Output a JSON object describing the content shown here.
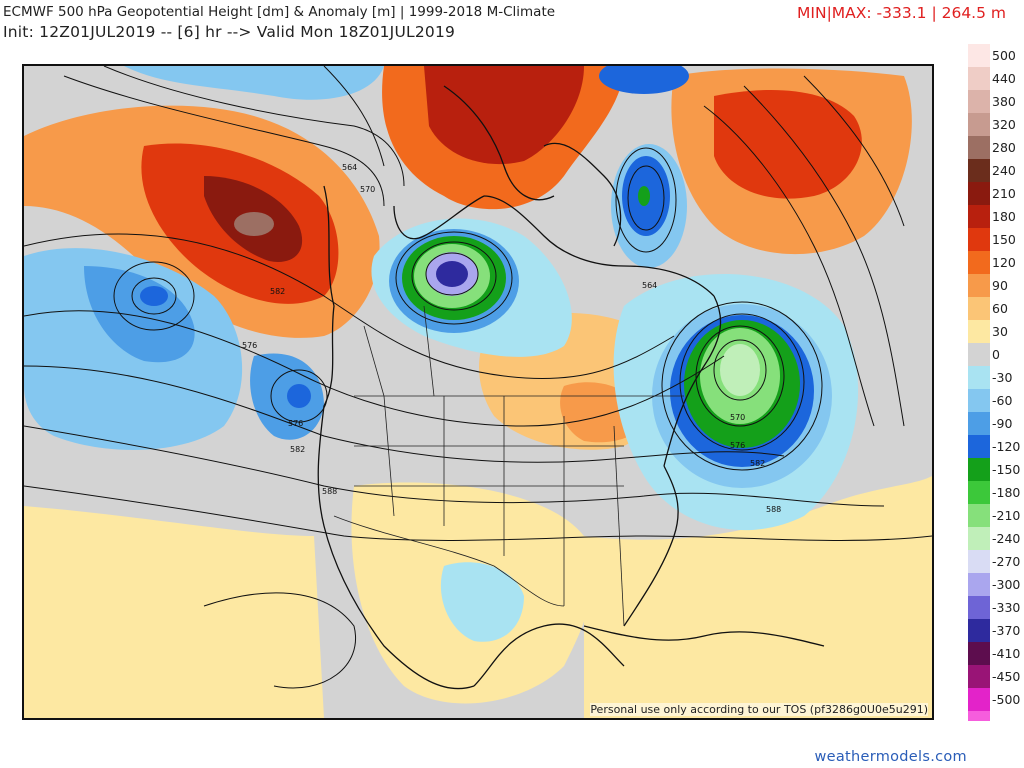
{
  "header": {
    "title": "ECMWF 500 hPa Geopotential Height [dm] & Anomaly [m] | 1999-2018 M-Climate",
    "init": "Init: 12Z01JUL2019 -- [6] hr --> Valid Mon 18Z01JUL2019",
    "minmax": "MIN|MAX: -333.1 | 264.5 m"
  },
  "map": {
    "tos_notice": "Personal use only according to our TOS (pf3286g0U0e5u291)",
    "contour_labels": [
      "564",
      "570",
      "582",
      "576",
      "576",
      "582",
      "588",
      "564",
      "570",
      "576",
      "582",
      "588"
    ]
  },
  "colorbar": {
    "labels": [
      "500",
      "440",
      "380",
      "320",
      "280",
      "240",
      "210",
      "180",
      "150",
      "120",
      "90",
      "60",
      "30",
      "0",
      "-30",
      "-60",
      "-90",
      "-120",
      "-150",
      "-180",
      "-210",
      "-240",
      "-270",
      "-300",
      "-330",
      "-370",
      "-410",
      "-450",
      "-500"
    ],
    "colors": [
      "#fde7e5",
      "#efcdc6",
      "#dcb3aa",
      "#c79b90",
      "#9c6f63",
      "#6b2d1c",
      "#8a1a0f",
      "#b8200e",
      "#e0380e",
      "#f26a1d",
      "#f79a4a",
      "#fbc576",
      "#fde8a2",
      "#d3d3d3",
      "#a9e3f2",
      "#84c7f0",
      "#4d9ee6",
      "#1c66dc",
      "#14a01a",
      "#3cc83a",
      "#86e07b",
      "#c0efb9",
      "#d9dcf4",
      "#aaa6ee",
      "#6e64d6",
      "#2e2a9e",
      "#5d0d4e",
      "#991476",
      "#e323c9",
      "#f65ddd"
    ]
  },
  "footer": {
    "site": "weathermodels.com"
  }
}
